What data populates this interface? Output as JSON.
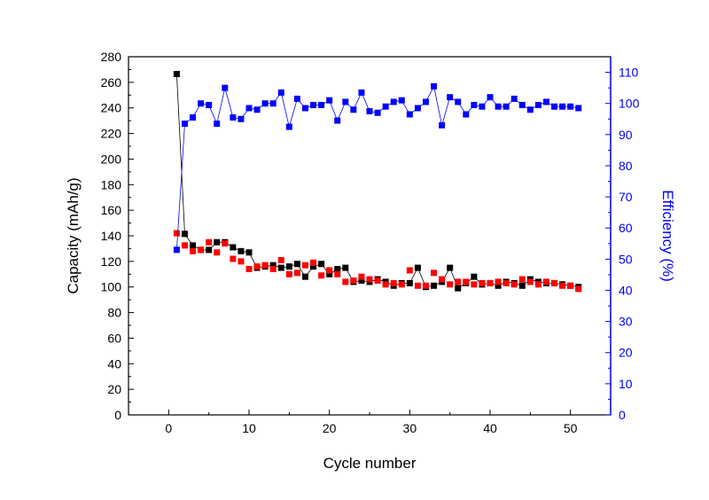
{
  "chart_data": {
    "type": "scatter",
    "xlabel": "Cycle number",
    "ylabel": "Capacity (mAh/g)",
    "y2label": "Efficiency (%)",
    "xlim": [
      -5,
      55
    ],
    "ylim": [
      0,
      280
    ],
    "y2lim": [
      0,
      115
    ],
    "xticks": [
      0,
      10,
      20,
      30,
      40,
      50
    ],
    "yticks": [
      0,
      20,
      40,
      60,
      80,
      100,
      120,
      140,
      160,
      180,
      200,
      220,
      240,
      260,
      280
    ],
    "y2ticks": [
      0,
      10,
      20,
      30,
      40,
      50,
      60,
      70,
      80,
      90,
      100,
      110
    ],
    "grid": false,
    "x": [
      1,
      2,
      3,
      4,
      5,
      6,
      7,
      8,
      9,
      10,
      11,
      12,
      13,
      14,
      15,
      16,
      17,
      18,
      19,
      20,
      21,
      22,
      23,
      24,
      25,
      26,
      27,
      28,
      29,
      30,
      31,
      32,
      33,
      34,
      35,
      36,
      37,
      38,
      39,
      40,
      41,
      42,
      43,
      44,
      45,
      46,
      47,
      48,
      49,
      50,
      51
    ],
    "series": [
      {
        "axis": "left",
        "color": "#000000",
        "marker": "square",
        "connected": true,
        "values": [
          266.5,
          141.5,
          132.5,
          129,
          129,
          135,
          135,
          131,
          128,
          127,
          115,
          116,
          117,
          115,
          116,
          118,
          108,
          116,
          118,
          110,
          114,
          115,
          104,
          105,
          104,
          106,
          104,
          101,
          103,
          103,
          115,
          100,
          101,
          104,
          115,
          99,
          103,
          108,
          102,
          103,
          101,
          104,
          103,
          101,
          106,
          104,
          103,
          103,
          102,
          101,
          100
        ]
      },
      {
        "axis": "left",
        "color": "#ff0000",
        "marker": "square",
        "connected": false,
        "values": [
          142,
          132.5,
          128,
          129,
          135,
          127,
          134,
          122,
          120,
          114,
          116,
          117,
          114,
          121,
          110,
          111,
          117,
          119,
          109,
          113,
          110,
          104,
          105,
          108,
          106,
          105,
          102,
          103,
          102,
          113,
          101,
          101,
          111,
          106,
          102,
          104,
          104,
          102,
          103,
          103,
          104,
          103,
          102,
          106,
          104,
          102,
          104,
          103,
          101,
          101,
          98.5
        ]
      },
      {
        "axis": "right",
        "color": "#0000ff",
        "marker": "square",
        "connected": true,
        "values": [
          53,
          93.5,
          95.5,
          100,
          99.5,
          93.5,
          105,
          95.5,
          95,
          98.5,
          98,
          100,
          100,
          103.5,
          92.5,
          101.5,
          98.5,
          99.5,
          99.5,
          101,
          94.5,
          100.5,
          98,
          103.5,
          97.5,
          97,
          99,
          100.5,
          101,
          96.5,
          98.5,
          100.5,
          105.5,
          93,
          102,
          100.5,
          96.5,
          99.5,
          99,
          102,
          99,
          99,
          101.5,
          99.5,
          98,
          99.5,
          100.5,
          99,
          99,
          99,
          98.5
        ]
      }
    ]
  }
}
